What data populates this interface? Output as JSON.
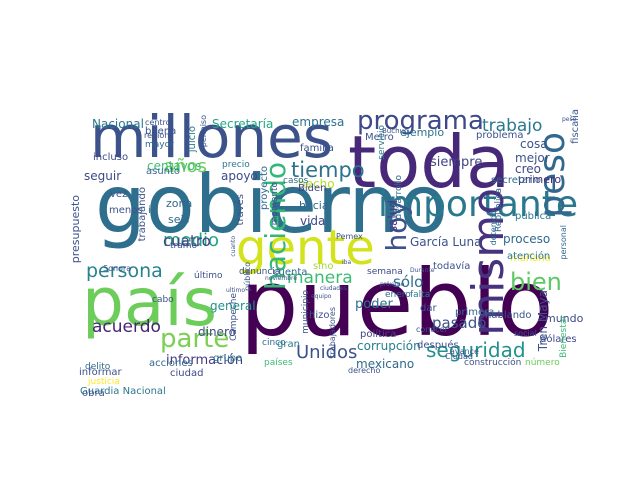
{
  "word_cloud": {
    "words": [
      {
        "text": "gobierno",
        "color": "#2f6f8e",
        "vertical": false
      },
      {
        "text": "pueblo",
        "color": "#440154",
        "vertical": false
      },
      {
        "text": "toda",
        "color": "#482878",
        "vertical": false
      },
      {
        "text": "país",
        "color": "#6ccd5a",
        "vertical": false
      },
      {
        "text": "millones",
        "color": "#3b528b",
        "vertical": false
      },
      {
        "text": "gente",
        "color": "#d2e21b",
        "vertical": false
      },
      {
        "text": "importante",
        "color": "#2a788e",
        "vertical": false
      },
      {
        "text": "mismo",
        "color": "#46327e",
        "vertical": true
      },
      {
        "text": "peso",
        "color": "#31688e",
        "vertical": true
      },
      {
        "text": "programa",
        "color": "#3e4989",
        "vertical": false
      },
      {
        "text": "bien",
        "color": "#5ec962",
        "vertical": false
      },
      {
        "text": "parte",
        "color": "#7ad151",
        "vertical": false
      },
      {
        "text": "seguridad",
        "color": "#21918c",
        "vertical": false
      },
      {
        "text": "persona",
        "color": "#26828e",
        "vertical": false
      },
      {
        "text": "tiempo",
        "color": "#2c728e",
        "vertical": false
      },
      {
        "text": "Unidos",
        "color": "#3b528b",
        "vertical": false
      },
      {
        "text": "trabajo",
        "color": "#2a788e",
        "vertical": false
      },
      {
        "text": "manera",
        "color": "#3dbc74",
        "vertical": false
      },
      {
        "text": "años",
        "color": "#6ccd5a",
        "vertical": false
      },
      {
        "text": "medio",
        "color": "#20a486",
        "vertical": false
      },
      {
        "text": "información",
        "color": "#443a83",
        "vertical": false
      },
      {
        "text": "hoy",
        "color": "#3b528b",
        "vertical": true
      },
      {
        "text": "acuerdo",
        "color": "#482475",
        "vertical": false
      },
      {
        "text": "cuatro",
        "color": "#433e85",
        "vertical": false
      },
      {
        "text": "haciendo",
        "color": "#35b779",
        "vertical": true
      },
      {
        "text": "García Luna",
        "color": "#3b528b",
        "vertical": false
      },
      {
        "text": "proceso",
        "color": "#31688e",
        "vertical": false
      },
      {
        "text": "sólo",
        "color": "#2c728e",
        "vertical": false
      },
      {
        "text": "pasado",
        "color": "#3b528b",
        "vertical": false
      },
      {
        "text": "corrupción",
        "color": "#287d8e",
        "vertical": false
      },
      {
        "text": "mexicano",
        "color": "#31688e",
        "vertical": false
      },
      {
        "text": "Secretaría",
        "color": "#22a884",
        "vertical": false
      },
      {
        "text": "empresa",
        "color": "#2c728e",
        "vertical": false
      },
      {
        "text": "Nacional",
        "color": "#2a788e",
        "vertical": false
      },
      {
        "text": "hecho",
        "color": "#b5de2b",
        "vertical": false
      },
      {
        "text": "cosa",
        "color": "#3b528b",
        "vertical": false
      },
      {
        "text": "mejor",
        "color": "#3b528b",
        "vertical": false
      },
      {
        "text": "creo",
        "color": "#3e4989",
        "vertical": false
      },
      {
        "text": "poder",
        "color": "#2c728e",
        "vertical": false
      },
      {
        "text": "apoyo",
        "color": "#3e4989",
        "vertical": false
      },
      {
        "text": "siempre",
        "color": "#414487",
        "vertical": false
      },
      {
        "text": "general",
        "color": "#21918c",
        "vertical": false
      },
      {
        "text": "dinero",
        "color": "#3e4989",
        "vertical": false
      },
      {
        "text": "vida",
        "color": "#3e4989",
        "vertical": false
      },
      {
        "text": "salud",
        "color": "#443983",
        "vertical": true
      },
      {
        "text": "Tren Maya",
        "color": "#3b528b",
        "vertical": true
      },
      {
        "text": "ejemplo",
        "color": "#2c728e",
        "vertical": false
      },
      {
        "text": "problema",
        "color": "#3b528b",
        "vertical": false
      },
      {
        "text": "primero",
        "color": "#482878",
        "vertical": false
      },
      {
        "text": "pública",
        "color": "#2a788e",
        "vertical": false
      },
      {
        "text": "fiscalía",
        "color": "#38598c",
        "vertical": true
      },
      {
        "text": "mañana",
        "color": "#fde725",
        "vertical": false
      },
      {
        "text": "Metro",
        "color": "#3b528b",
        "vertical": false
      },
      {
        "text": "Biden",
        "color": "#414487",
        "vertical": false
      },
      {
        "text": "familia",
        "color": "#3b528b",
        "vertical": false
      },
      {
        "text": "hacia",
        "color": "#31688e",
        "vertical": false
      },
      {
        "text": "centavos",
        "color": "#3dbc74",
        "vertical": false
      },
      {
        "text": "asunto",
        "color": "#31688e",
        "vertical": false
      },
      {
        "text": "incluso",
        "color": "#3e4989",
        "vertical": false
      },
      {
        "text": "seguir",
        "color": "#3e4989",
        "vertical": false
      },
      {
        "text": "zona",
        "color": "#31688e",
        "vertical": false
      },
      {
        "text": "seis",
        "color": "#31688e",
        "vertical": false
      },
      {
        "text": "mundo",
        "color": "#3e4989",
        "vertical": false
      },
      {
        "text": "dólares",
        "color": "#3e4989",
        "vertical": false
      },
      {
        "text": "atención",
        "color": "#2a788e",
        "vertical": false
      },
      {
        "text": "secretario",
        "color": "#31688e",
        "vertical": false
      },
      {
        "text": "Guardia Nacional",
        "color": "#2a788e",
        "vertical": false
      },
      {
        "text": "informar",
        "color": "#3b528b",
        "vertical": false
      },
      {
        "text": "acciones",
        "color": "#31688e",
        "vertical": false
      },
      {
        "text": "obra",
        "color": "#3b528b",
        "vertical": false
      },
      {
        "text": "justicia",
        "color": "#fde725",
        "vertical": false
      },
      {
        "text": "delito",
        "color": "#31688e",
        "vertical": false
      },
      {
        "text": "ciudad",
        "color": "#3e4989",
        "vertical": false
      },
      {
        "text": "grupo",
        "color": "#2a788e",
        "vertical": false
      },
      {
        "text": "cinco",
        "color": "#31688e",
        "vertical": false
      },
      {
        "text": "países",
        "color": "#3dbc74",
        "vertical": false
      },
      {
        "text": "gran",
        "color": "#2a788e",
        "vertical": false
      },
      {
        "text": "hizo",
        "color": "#3b528b",
        "vertical": false
      },
      {
        "text": "política",
        "color": "#414487",
        "vertical": false
      },
      {
        "text": "dar",
        "color": "#3b528b",
        "vertical": false
      },
      {
        "text": "primera",
        "color": "#31688e",
        "vertical": false
      },
      {
        "text": "hablando",
        "color": "#3b528b",
        "vertical": false
      },
      {
        "text": "construcción",
        "color": "#3b528b",
        "vertical": false
      },
      {
        "text": "número",
        "color": "#6ccd5a",
        "vertical": false
      },
      {
        "text": "Bienestar",
        "color": "#3dbc74",
        "vertical": true
      },
      {
        "text": "semana",
        "color": "#3e4989",
        "vertical": false
      },
      {
        "text": "cuenta",
        "color": "#31688e",
        "vertical": false
      },
      {
        "text": "sino",
        "color": "#a0da39",
        "vertical": false
      },
      {
        "text": "denuncia",
        "color": "#3b528b",
        "vertical": false
      },
      {
        "text": "enero",
        "color": "#31688e",
        "vertical": false
      },
      {
        "text": "falta",
        "color": "#2a788e",
        "vertical": false
      },
      {
        "text": "todavía",
        "color": "#3b528b",
        "vertical": false
      },
      {
        "text": "después",
        "color": "#3b528b",
        "vertical": false
      },
      {
        "text": "buena",
        "color": "#3b528b",
        "vertical": false
      },
      {
        "text": "mayor",
        "color": "#31688e",
        "vertical": false
      },
      {
        "text": "centro",
        "color": "#3b528b",
        "vertical": false
      },
      {
        "text": "región",
        "color": "#3b528b",
        "vertical": false
      },
      {
        "text": "juicio",
        "color": "#2a788e",
        "vertical": true
      },
      {
        "text": "precio",
        "color": "#2a788e",
        "vertical": false
      },
      {
        "text": "proyecto",
        "color": "#31688e",
        "vertical": true
      },
      {
        "text": "momento",
        "color": "#3b528b",
        "vertical": true
      },
      {
        "text": "casos",
        "color": "#31688e",
        "vertical": false
      },
      {
        "text": "través",
        "color": "#3b528b",
        "vertical": true
      },
      {
        "text": "trabajando",
        "color": "#3b528b",
        "vertical": true
      },
      {
        "text": "menos",
        "color": "#3b528b",
        "vertical": false
      },
      {
        "text": "presupuesto",
        "color": "#3b528b",
        "vertical": true
      },
      {
        "text": "vez",
        "color": "#3b528b",
        "vertical": false
      },
      {
        "text": "ir",
        "color": "#31688e",
        "vertical": false
      },
      {
        "text": "tramo",
        "color": "#3b528b",
        "vertical": false
      },
      {
        "text": "último",
        "color": "#3b528b",
        "vertical": false
      },
      {
        "text": "cabo",
        "color": "#3b528b",
        "vertical": false
      },
      {
        "text": "Campeche",
        "color": "#3b528b",
        "vertical": true
      },
      {
        "text": "municipio",
        "color": "#3b528b",
        "vertical": true
      },
      {
        "text": "Sonora",
        "color": "#3b528b",
        "vertical": false
      },
      {
        "text": "Ciudad",
        "color": "#3b528b",
        "vertical": false
      },
      {
        "text": "derecho",
        "color": "#3b528b",
        "vertical": false
      },
      {
        "text": "trabajadores",
        "color": "#3b528b",
        "vertical": true
      },
      {
        "text": "servicio",
        "color": "#2a788e",
        "vertical": true
      },
      {
        "text": "desarrollo",
        "color": "#31688e",
        "vertical": true
      },
      {
        "text": "detenido",
        "color": "#31688e",
        "vertical": true
      },
      {
        "text": "República",
        "color": "#31688e",
        "vertical": true
      },
      {
        "text": "personal",
        "color": "#31688e",
        "vertical": true
      },
      {
        "text": "avance",
        "color": "#3b528b",
        "vertical": false
      },
      {
        "text": "social",
        "color": "#3b528b",
        "vertical": false
      },
      {
        "text": "conocer",
        "color": "#3b528b",
        "vertical": false
      },
      {
        "text": "Pemex",
        "color": "#3b528b",
        "vertical": false
      },
      {
        "text": "público",
        "color": "#3b528b",
        "vertical": true
      },
      {
        "text": "permiso",
        "color": "#3b528b",
        "vertical": true
      },
      {
        "text": "Buchuo",
        "color": "#3b528b",
        "vertical": false
      },
      {
        "text": "peso",
        "color": "#3b528b",
        "vertical": false
      },
      {
        "text": "iba",
        "color": "#3b528b",
        "vertical": false
      },
      {
        "text": "equipo",
        "color": "#3b528b",
        "vertical": false
      },
      {
        "text": "Durante",
        "color": "#3b528b",
        "vertical": false
      },
      {
        "text": "próximo",
        "color": "#3b528b",
        "vertical": false
      },
      {
        "text": "ciudades",
        "color": "#3b528b",
        "vertical": false
      },
      {
        "text": "cuanto",
        "color": "#3b528b",
        "vertical": true
      },
      {
        "text": "ultimo",
        "color": "#3b528b",
        "vertical": false
      },
      {
        "text": "noviembre",
        "color": "#3b528b",
        "vertical": false
      }
    ]
  }
}
